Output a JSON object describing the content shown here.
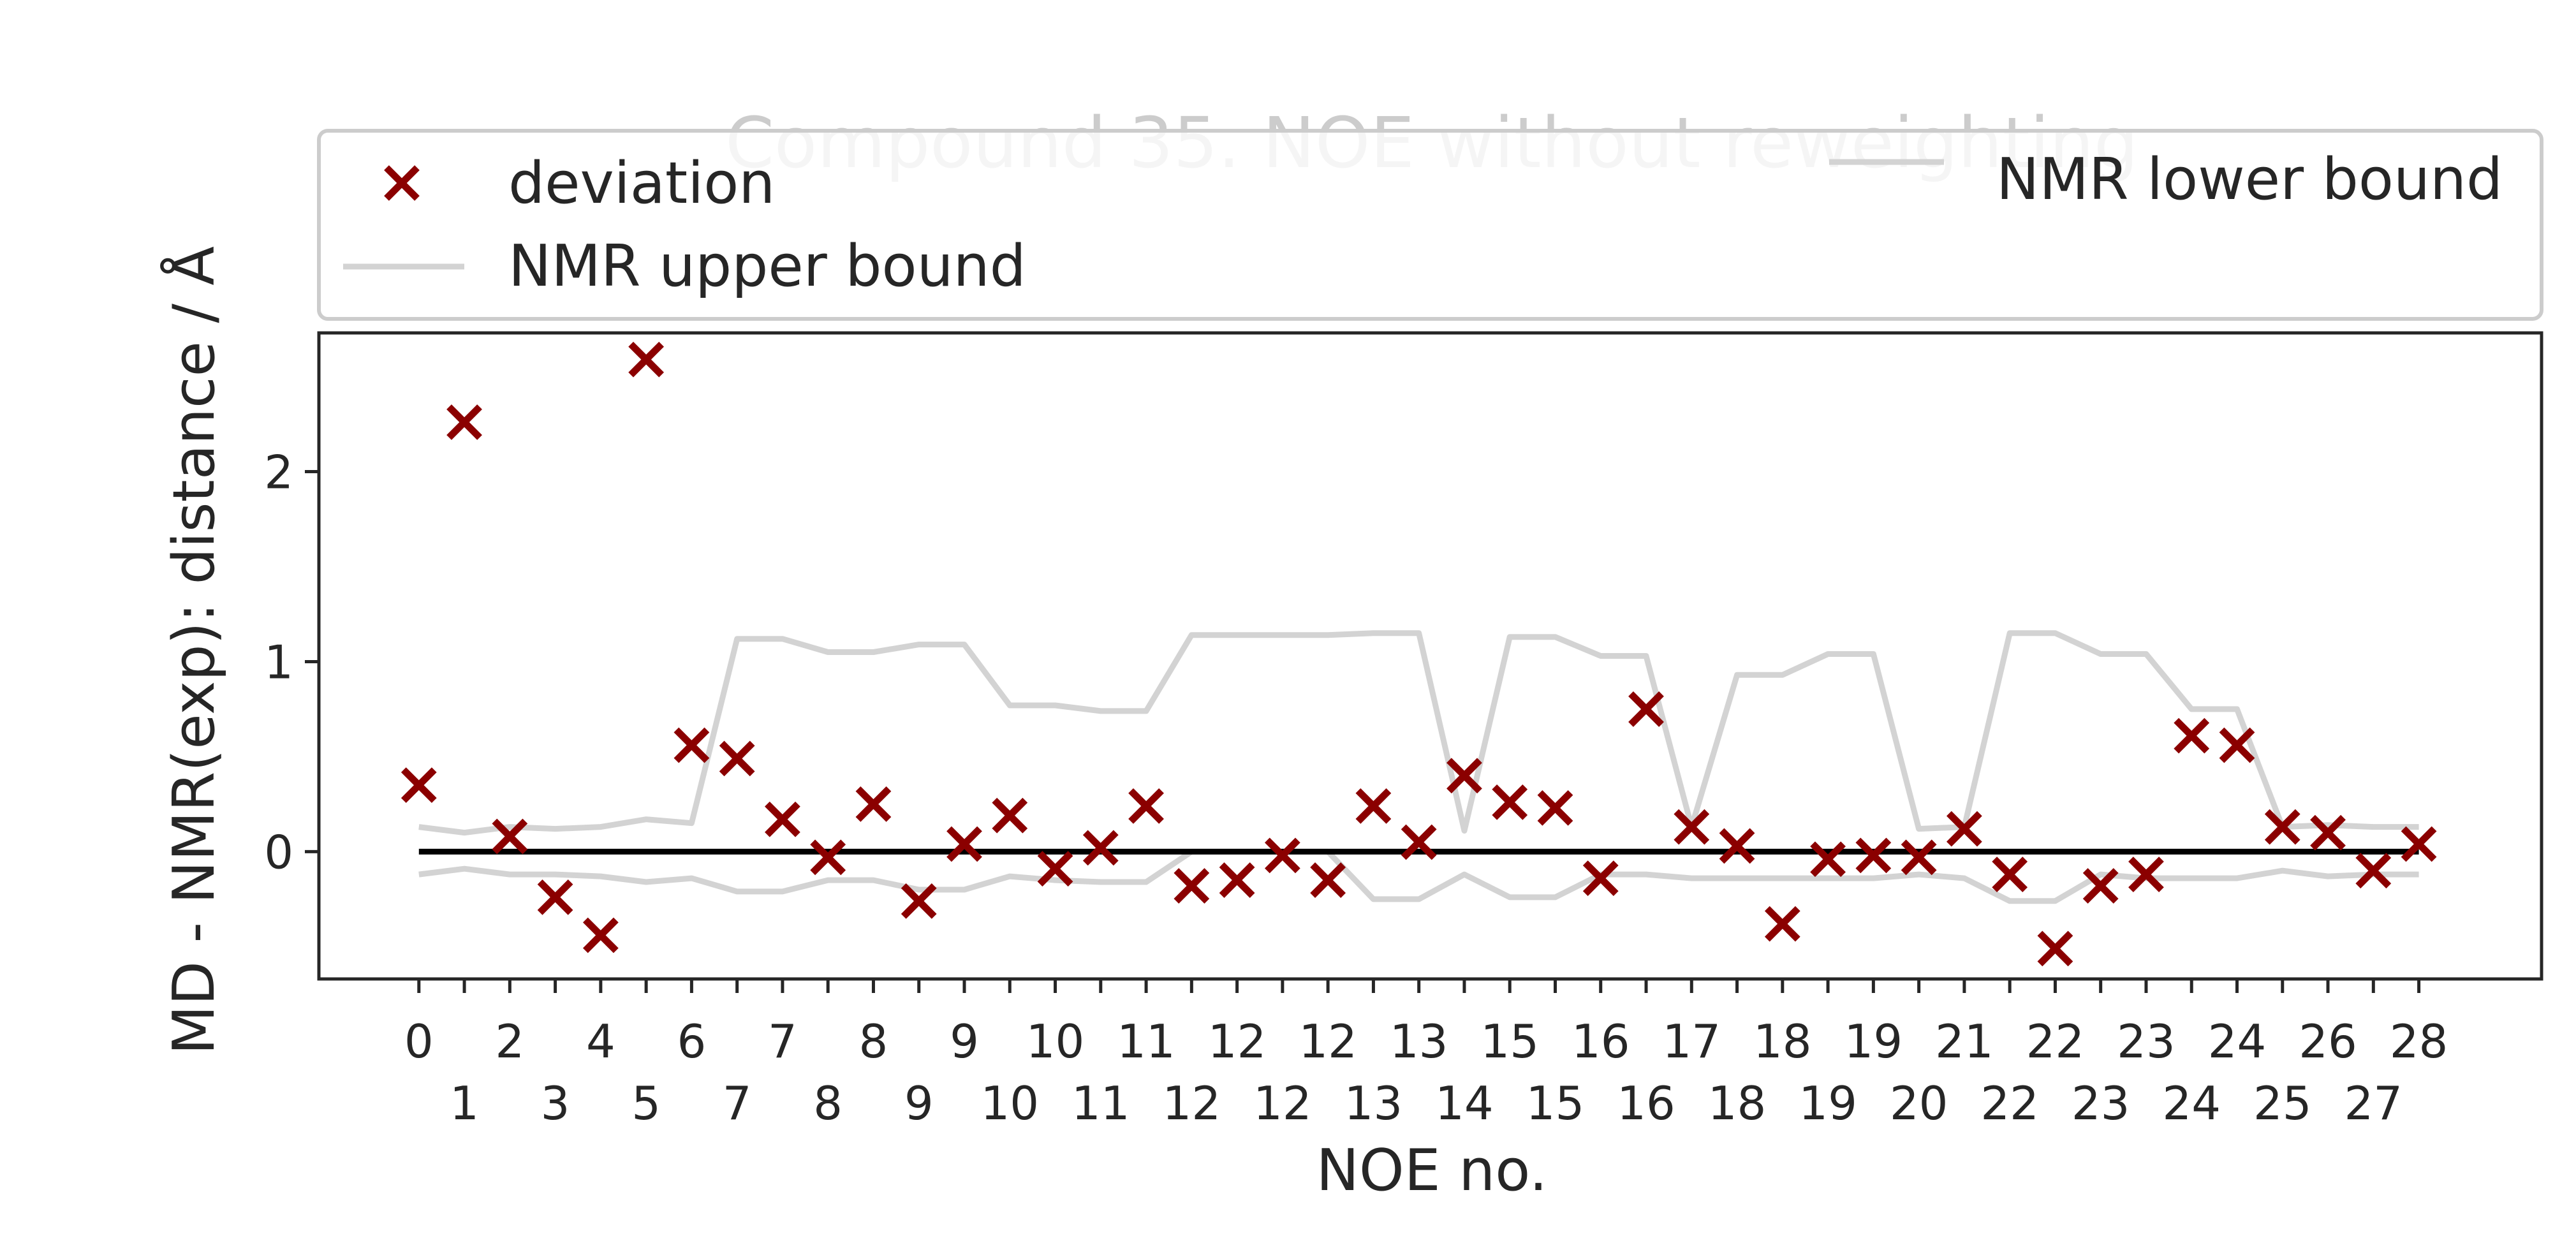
{
  "chart_data": {
    "type": "scatter",
    "title": "Compound 35. NOE without reweighting",
    "xlabel": "NOE no.",
    "ylabel": "MD - NMR(exp): distance / Å",
    "ylim": [
      -0.67,
      2.73
    ],
    "yticks": [
      0,
      1,
      2
    ],
    "xticks": [
      0,
      0.5,
      1,
      1.5,
      2,
      2.5,
      3,
      3.5,
      4,
      4.5,
      5,
      5.5,
      6,
      6.5,
      7,
      7.5,
      8,
      8.5,
      9,
      9.5,
      10,
      10.5,
      11,
      11.5,
      12,
      12.5,
      13,
      13.5,
      14,
      14.5,
      15,
      15.5,
      16,
      16.5,
      17,
      17.5,
      18,
      18.5,
      19,
      19.5,
      20,
      20.5,
      21,
      21.5,
      22
    ],
    "xtick_labels": [
      "0",
      "1",
      "2",
      "3",
      "4",
      "5",
      "6",
      "7",
      "7",
      "8",
      "8",
      "9",
      "9",
      "10",
      "10",
      "11",
      "11",
      "12",
      "12",
      "12",
      "12",
      "13",
      "13",
      "14",
      "15",
      "15",
      "16",
      "16",
      "17",
      "18",
      "18",
      "19",
      "19",
      "20",
      "21",
      "22",
      "22",
      "23",
      "23",
      "24",
      "24",
      "25",
      "26",
      "27",
      "28"
    ],
    "grid": false,
    "legend": {
      "placement": "top",
      "entries": [
        {
          "label": "deviation",
          "marker": "x",
          "color": "#8b0000"
        },
        {
          "label": "NMR lower bound",
          "line": true,
          "color": "#d3d3d3"
        },
        {
          "label": "NMR upper bound",
          "line": true,
          "color": "#d3d3d3"
        }
      ]
    },
    "series": [
      {
        "name": "deviation",
        "kind": "scatter",
        "marker": "x",
        "color": "#8b0000",
        "x": [
          0,
          0.5,
          1,
          1.5,
          2,
          2.5,
          3,
          3.5,
          4,
          4.5,
          5,
          5.5,
          6,
          6.5,
          7,
          7.5,
          8,
          8.5,
          9,
          9.5,
          10,
          10.5,
          11,
          11.5,
          12,
          12.5,
          13,
          13.5,
          14,
          14.5,
          15,
          15.5,
          16,
          16.5,
          17,
          17.5,
          18,
          18.5,
          19,
          19.5,
          20,
          20.5,
          21,
          21.5,
          22
        ],
        "y": [
          0.35,
          2.26,
          0.08,
          -0.24,
          -0.44,
          2.59,
          0.56,
          0.49,
          0.17,
          -0.03,
          0.25,
          -0.26,
          0.04,
          0.19,
          -0.09,
          0.02,
          0.24,
          -0.18,
          -0.15,
          -0.02,
          -0.15,
          0.24,
          0.05,
          0.4,
          0.26,
          0.23,
          -0.14,
          0.75,
          0.13,
          0.03,
          -0.38,
          -0.04,
          -0.02,
          -0.03,
          0.12,
          -0.12,
          -0.51,
          -0.18,
          -0.12,
          0.61,
          0.56,
          0.13,
          0.1,
          -0.1,
          0.04
        ]
      },
      {
        "name": "NMR lower bound",
        "kind": "line",
        "color": "#d3d3d3",
        "x": [
          0,
          0.5,
          1,
          1.5,
          2,
          2.5,
          3,
          3.5,
          4,
          4.5,
          5,
          5.5,
          6,
          6.5,
          7,
          7.5,
          8,
          8.5,
          9,
          9.5,
          10,
          10.5,
          11,
          11.5,
          12,
          12.5,
          13,
          13.5,
          14,
          14.5,
          15,
          15.5,
          16,
          16.5,
          17,
          17.5,
          18,
          18.5,
          19,
          19.5,
          20,
          20.5,
          21,
          21.5,
          22
        ],
        "y": [
          -0.12,
          -0.09,
          -0.12,
          -0.12,
          -0.13,
          -0.16,
          -0.14,
          -0.21,
          -0.21,
          -0.15,
          -0.15,
          -0.2,
          -0.2,
          -0.13,
          -0.15,
          -0.16,
          -0.16,
          0,
          0,
          0,
          0,
          -0.25,
          -0.25,
          -0.12,
          -0.24,
          -0.24,
          -0.12,
          -0.12,
          -0.14,
          -0.14,
          -0.14,
          -0.14,
          -0.14,
          -0.12,
          -0.14,
          -0.26,
          -0.26,
          -0.12,
          -0.14,
          -0.14,
          -0.14,
          -0.1,
          -0.13,
          -0.12,
          -0.12
        ]
      },
      {
        "name": "NMR upper bound",
        "kind": "line",
        "color": "#d3d3d3",
        "x": [
          0,
          0.5,
          1,
          1.5,
          2,
          2.5,
          3,
          3.5,
          4,
          4.5,
          5,
          5.5,
          6,
          6.5,
          7,
          7.5,
          8,
          8.5,
          9,
          9.5,
          10,
          10.5,
          11,
          11.5,
          12,
          12.5,
          13,
          13.5,
          14,
          14.5,
          15,
          15.5,
          16,
          16.5,
          17,
          17.5,
          18,
          18.5,
          19,
          19.5,
          20,
          20.5,
          21,
          21.5,
          22
        ],
        "y": [
          0.13,
          0.1,
          0.13,
          0.12,
          0.13,
          0.17,
          0.15,
          1.12,
          1.12,
          1.05,
          1.05,
          1.09,
          1.09,
          0.77,
          0.77,
          0.74,
          0.74,
          1.14,
          1.14,
          1.14,
          1.14,
          1.15,
          1.15,
          0.11,
          1.13,
          1.13,
          1.03,
          1.03,
          0.13,
          0.93,
          0.93,
          1.04,
          1.04,
          0.12,
          0.13,
          1.15,
          1.15,
          1.04,
          1.04,
          0.75,
          0.75,
          0.13,
          0.14,
          0.13,
          0.13
        ]
      },
      {
        "name": "",
        "kind": "line",
        "color": "#000000",
        "x": [
          0,
          22
        ],
        "y": [
          0,
          0
        ]
      }
    ]
  }
}
